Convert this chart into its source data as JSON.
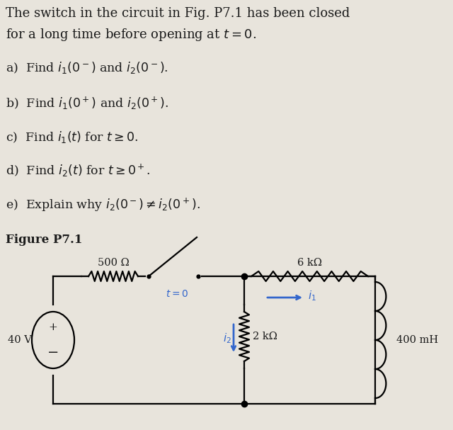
{
  "title_line1": "The switch in the circuit in Fig. P7.1 has been closed",
  "title_line2": "for a long time before opening at $t = 0$.",
  "questions": [
    "a)  Find $i_1(0^-)$ and $i_2(0^-)$.",
    "b)  Find $i_1(0^+)$ and $i_2(0^+)$.",
    "c)  Find $i_1(t)$ for $t \\geq 0$.",
    "d)  Find $i_2(t)$ for $t \\geq 0^+$.",
    "e)  Explain why $i_2(0^-) \\neq i_2(0^+)$."
  ],
  "figure_label": "Figure P7.1",
  "bg_color": "#e8e4dc",
  "text_color": "#1a1a1a",
  "blue_color": "#3366cc",
  "lw": 1.6,
  "fontsize_title": 13,
  "fontsize_q": 12.5,
  "fontsize_fig": 12,
  "fontsize_circuit": 10.5
}
